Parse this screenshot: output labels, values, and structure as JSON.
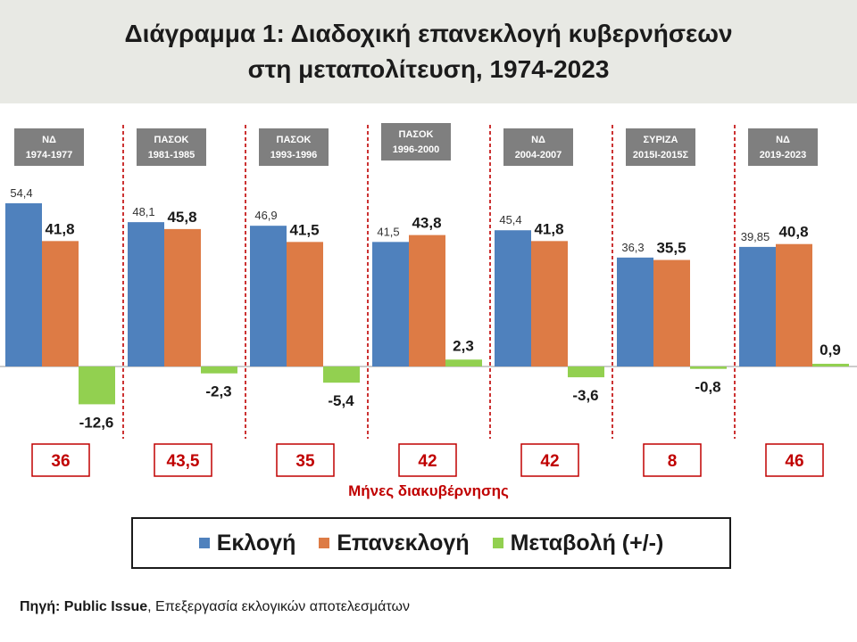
{
  "title": {
    "line1": "Διάγραμμα 1: Διαδοχική επανεκλογή κυβερνήσεων",
    "line2": "στη μεταπολίτευση, 1974-2023"
  },
  "colors": {
    "election": "#4f81bd",
    "reelection": "#dd7b45",
    "change": "#92d050",
    "label_box": "#7f7f7f",
    "divider": "#c00000",
    "months_text": "#c00000"
  },
  "chart_data": {
    "type": "bar",
    "categories": [
      {
        "party": "ΝΔ",
        "period": "1974-1977"
      },
      {
        "party": "ΠΑΣΟΚ",
        "period": "1981-1985"
      },
      {
        "party": "ΠΑΣΟΚ",
        "period": "1993-1996"
      },
      {
        "party": "ΠΑΣΟΚ",
        "period": "1996-2000"
      },
      {
        "party": "ΝΔ",
        "period": "2004-2007"
      },
      {
        "party": "ΣΥΡΙΖΑ",
        "period": "2015Ι-2015Σ"
      },
      {
        "party": "ΝΔ",
        "period": "2019-2023"
      }
    ],
    "series": [
      {
        "name": "Εκλογή",
        "values": [
          54.4,
          48.1,
          46.9,
          41.5,
          45.4,
          36.3,
          39.85
        ],
        "labels": [
          "54,4",
          "48,1",
          "46,9",
          "41,5",
          "45,4",
          "36,3",
          "39,85"
        ]
      },
      {
        "name": "Επανεκλογή",
        "values": [
          41.8,
          45.8,
          41.5,
          43.8,
          41.8,
          35.5,
          40.8
        ],
        "labels": [
          "41,8",
          "45,8",
          "41,5",
          "43,8",
          "41,8",
          "35,5",
          "40,8"
        ]
      },
      {
        "name": "Μεταβολή (+/-)",
        "values": [
          -12.6,
          -2.3,
          -5.4,
          2.3,
          -3.6,
          -0.8,
          0.9
        ],
        "labels": [
          "-12,6",
          "-2,3",
          "-5,4",
          "2,3",
          "-3,6",
          "-0,8",
          "0,9"
        ]
      }
    ],
    "months": [
      "36",
      "43,5",
      "35",
      "42",
      "42",
      "8",
      "46"
    ],
    "months_axis_label": "Μήνες διακυβέρνησης",
    "ylim": [
      -15,
      55
    ],
    "legend_position": "bottom",
    "grid": false
  },
  "legend": {
    "items": [
      "Εκλογή",
      "Επανεκλογή",
      "Μεταβολή (+/-)"
    ]
  },
  "source": {
    "label": "Πηγή: Public Issue",
    "text": ", Επεξεργασία εκλογικών αποτελεσμάτων"
  }
}
